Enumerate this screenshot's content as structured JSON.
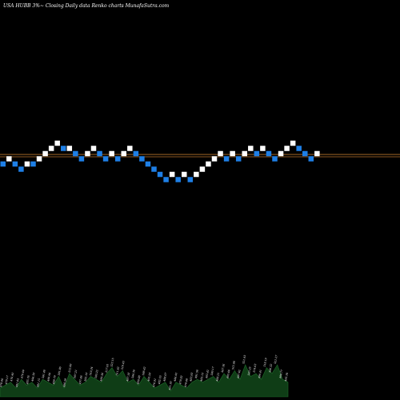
{
  "header": {
    "text": "USA HUBB 3%~  Closing Daily data  Renko  charts MunafaSutra.com"
  },
  "chart_data": {
    "type": "renko",
    "box_size_label": "3%",
    "price_lines": [
      {
        "level": 0.0,
        "color": "#b8732a"
      },
      {
        "level": 0.45,
        "color": "#b8732a"
      }
    ],
    "up_color": "#ffffff",
    "down_color": "#1e7fe6",
    "bricks": [
      {
        "dir": "down",
        "level": -1
      },
      {
        "dir": "up",
        "level": 0
      },
      {
        "dir": "down",
        "level": -1
      },
      {
        "dir": "down",
        "level": -2
      },
      {
        "dir": "up",
        "level": -1
      },
      {
        "dir": "down",
        "level": -1
      },
      {
        "dir": "up",
        "level": 0
      },
      {
        "dir": "up",
        "level": 1
      },
      {
        "dir": "up",
        "level": 2
      },
      {
        "dir": "up",
        "level": 3
      },
      {
        "dir": "down",
        "level": 2
      },
      {
        "dir": "up",
        "level": 2
      },
      {
        "dir": "down",
        "level": 1
      },
      {
        "dir": "down",
        "level": 0
      },
      {
        "dir": "up",
        "level": 1
      },
      {
        "dir": "up",
        "level": 2
      },
      {
        "dir": "down",
        "level": 1
      },
      {
        "dir": "down",
        "level": 0
      },
      {
        "dir": "up",
        "level": 1
      },
      {
        "dir": "down",
        "level": 0
      },
      {
        "dir": "up",
        "level": 1
      },
      {
        "dir": "up",
        "level": 2
      },
      {
        "dir": "down",
        "level": 1
      },
      {
        "dir": "down",
        "level": 0
      },
      {
        "dir": "down",
        "level": -1
      },
      {
        "dir": "down",
        "level": -2
      },
      {
        "dir": "down",
        "level": -3
      },
      {
        "dir": "down",
        "level": -4
      },
      {
        "dir": "up",
        "level": -3
      },
      {
        "dir": "down",
        "level": -4
      },
      {
        "dir": "up",
        "level": -3
      },
      {
        "dir": "down",
        "level": -4
      },
      {
        "dir": "up",
        "level": -3
      },
      {
        "dir": "up",
        "level": -2
      },
      {
        "dir": "up",
        "level": -1
      },
      {
        "dir": "up",
        "level": 0
      },
      {
        "dir": "up",
        "level": 1
      },
      {
        "dir": "down",
        "level": 0
      },
      {
        "dir": "up",
        "level": 1
      },
      {
        "dir": "down",
        "level": 0
      },
      {
        "dir": "up",
        "level": 1
      },
      {
        "dir": "up",
        "level": 2
      },
      {
        "dir": "down",
        "level": 1
      },
      {
        "dir": "up",
        "level": 2
      },
      {
        "dir": "down",
        "level": 1
      },
      {
        "dir": "down",
        "level": 0
      },
      {
        "dir": "up",
        "level": 1
      },
      {
        "dir": "up",
        "level": 2
      },
      {
        "dir": "up",
        "level": 3
      },
      {
        "dir": "down",
        "level": 2
      },
      {
        "dir": "down",
        "level": 1
      },
      {
        "dir": "down",
        "level": 0
      },
      {
        "dir": "up",
        "level": 1
      }
    ],
    "volume": [
      3,
      4,
      5,
      3,
      6,
      4,
      5,
      3,
      6,
      5,
      4,
      7,
      3,
      8,
      6,
      4,
      5,
      7,
      6,
      5,
      8,
      10,
      7,
      9,
      5,
      6,
      4,
      7,
      5,
      3,
      4,
      5,
      2,
      5,
      4,
      3,
      5,
      6,
      5,
      6,
      7,
      5,
      8,
      6,
      9,
      6,
      11,
      7,
      8,
      6,
      10,
      8,
      11,
      6,
      5
    ],
    "volume_labels": [
      "478.86",
      "479.17",
      "476.40",
      "491.85",
      "479.60",
      "485.76",
      "496.30",
      "491.15",
      "501.48",
      "496.44",
      "489.79",
      "501.06",
      "490.59",
      "512.80",
      "507.21",
      "497.86",
      "502.19",
      "510.34",
      "505.22",
      "499.56",
      "517.91",
      "523.15",
      "511.62",
      "519.43",
      "497.18",
      "504.30",
      "489.68",
      "508.42",
      "495.20",
      "476.91",
      "482.55",
      "488.07",
      "461.30",
      "486.45",
      "479.82",
      "470.66",
      "483.93",
      "491.58",
      "485.15",
      "493.42",
      "500.17",
      "488.21",
      "507.36",
      "495.66",
      "512.08",
      "497.62",
      "521.43",
      "503.25",
      "514.63",
      "499.41",
      "518.19",
      "506.52",
      "521.27",
      "498.77",
      "495.34"
    ]
  }
}
